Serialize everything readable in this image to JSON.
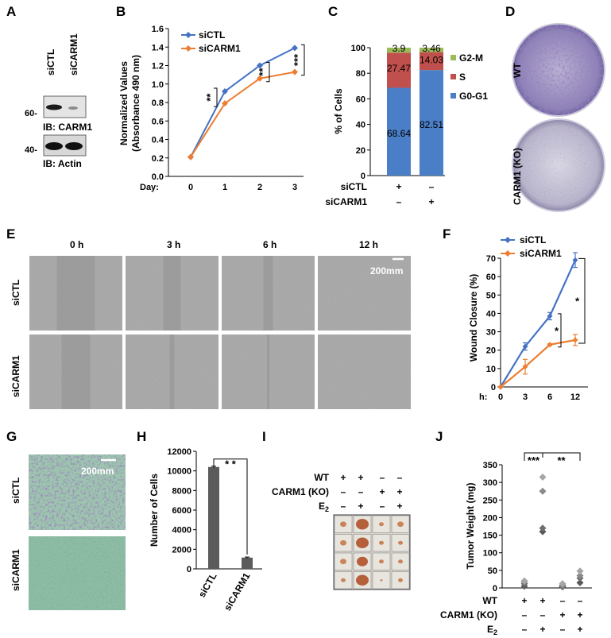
{
  "panels": {
    "A": "A",
    "B": "B",
    "C": "C",
    "D": "D",
    "E": "E",
    "F": "F",
    "G": "G",
    "H": "H",
    "I": "I",
    "J": "J"
  },
  "blot": {
    "lanes": [
      "siCTL",
      "siCARM1"
    ],
    "markers": [
      "60-",
      "40-"
    ],
    "labels": [
      "IB: CARM1",
      "IB: Actin"
    ]
  },
  "colony": {
    "labels": [
      "WT",
      "CARM1 (KO)"
    ]
  },
  "wound_images": {
    "time_labels": [
      "0 h",
      "3 h",
      "6 h",
      "12 h"
    ],
    "row_labels": [
      "siCTL",
      "siCARM1"
    ],
    "scale": "200mm"
  },
  "invasion_images": {
    "row_labels": [
      "siCTL",
      "siCARM1"
    ],
    "scale": "200mm"
  },
  "tumor_grid": {
    "rows": [
      {
        "label": "WT",
        "signs": [
          "+",
          "+",
          "–",
          "–"
        ]
      },
      {
        "label": "CARM1 (KO)",
        "signs": [
          "–",
          "–",
          "+",
          "+"
        ]
      },
      {
        "label": "E",
        "sub": "2",
        "signs": [
          "–",
          "+",
          "–",
          "+"
        ]
      }
    ]
  },
  "chart_data": [
    {
      "id": "B",
      "type": "line",
      "ylabel_lines": [
        "Normalized Values",
        "(Absorbance 490 nm)"
      ],
      "xprefix": "Day:",
      "x": [
        0,
        1,
        2,
        3
      ],
      "ylim": [
        0,
        1.6
      ],
      "yticks": [
        "0.0",
        "0.2",
        "0.4",
        "0.6",
        "0.8",
        "1.0",
        "1.2",
        "1.4",
        "1.6"
      ],
      "series": [
        {
          "name": "siCTL",
          "color": "#4472c4",
          "values": [
            0.21,
            0.92,
            1.2,
            1.39
          ]
        },
        {
          "name": "siCARM1",
          "color": "#ed7d31",
          "values": [
            0.21,
            0.79,
            1.06,
            1.13
          ]
        }
      ],
      "significance": [
        "**",
        "**",
        "***"
      ]
    },
    {
      "id": "C",
      "type": "bar",
      "stacked": true,
      "ylabel": "% of Cells",
      "ylim": [
        0,
        100
      ],
      "yticks": [
        "0",
        "20",
        "40",
        "60",
        "80",
        "100"
      ],
      "series": [
        {
          "name": "G0-G1",
          "color": "#4a7ec6",
          "values": [
            68.64,
            82.51
          ],
          "labels": [
            "68.64",
            "82.51"
          ]
        },
        {
          "name": "S",
          "color": "#c0504d",
          "values": [
            27.47,
            14.03
          ],
          "labels": [
            "27.47",
            "14.03"
          ]
        },
        {
          "name": "G2-M",
          "color": "#9bbb59",
          "values": [
            3.9,
            3.46
          ],
          "labels": [
            "3.9",
            "3.46"
          ]
        }
      ],
      "legend_order": [
        "G2-M",
        "S",
        "G0-G1"
      ],
      "conditions": [
        {
          "label": "siCTL",
          "signs": [
            "+",
            "–"
          ]
        },
        {
          "label": "siCARM1",
          "signs": [
            "–",
            "+"
          ]
        }
      ]
    },
    {
      "id": "F",
      "type": "line",
      "ylabel": "Wound Closure (%)",
      "xprefix": "h:",
      "x": [
        0,
        3,
        6,
        12
      ],
      "ylim": [
        0,
        70
      ],
      "yticks": [
        "0",
        "10",
        "20",
        "30",
        "40",
        "50",
        "60",
        "70"
      ],
      "series": [
        {
          "name": "siCTL",
          "color": "#4472c4",
          "values": [
            0,
            22,
            38.5,
            69
          ],
          "errors": [
            0,
            2,
            2,
            4
          ]
        },
        {
          "name": "siCARM1",
          "color": "#ed7d31",
          "values": [
            0,
            11,
            23,
            25.5
          ],
          "errors": [
            0,
            4,
            0.5,
            3
          ]
        }
      ],
      "significance": [
        "*",
        "*"
      ]
    },
    {
      "id": "H",
      "type": "bar",
      "ylabel": "Number of Cells",
      "categories": [
        "siCTL",
        "siCARM1"
      ],
      "values": [
        10400,
        1150
      ],
      "errors": [
        80,
        60
      ],
      "ylim": [
        0,
        12000
      ],
      "yticks": [
        "0",
        "2000",
        "4000",
        "6000",
        "8000",
        "10000",
        "12000"
      ],
      "color": "#5b5b5b",
      "significance": "* *"
    },
    {
      "id": "J",
      "type": "scatter",
      "ylabel": "Tumor Weight (mg)",
      "ylim": [
        0,
        350
      ],
      "yticks": [
        "0",
        "50",
        "100",
        "150",
        "200",
        "250",
        "300",
        "350"
      ],
      "groups": [
        {
          "values": [
            5,
            12,
            18,
            20
          ]
        },
        {
          "values": [
            160,
            170,
            275,
            315
          ]
        },
        {
          "values": [
            3,
            5,
            8,
            12
          ]
        },
        {
          "values": [
            15,
            28,
            35,
            48
          ]
        }
      ],
      "conditions": [
        {
          "label": "WT",
          "signs": [
            "+",
            "+",
            "–",
            "–"
          ]
        },
        {
          "label": "CARM1 (KO)",
          "signs": [
            "–",
            "–",
            "+",
            "+"
          ]
        },
        {
          "label": "E",
          "sub": "2",
          "signs": [
            "–",
            "+",
            "–",
            "+"
          ]
        }
      ],
      "significance": [
        "***",
        "**"
      ]
    }
  ]
}
